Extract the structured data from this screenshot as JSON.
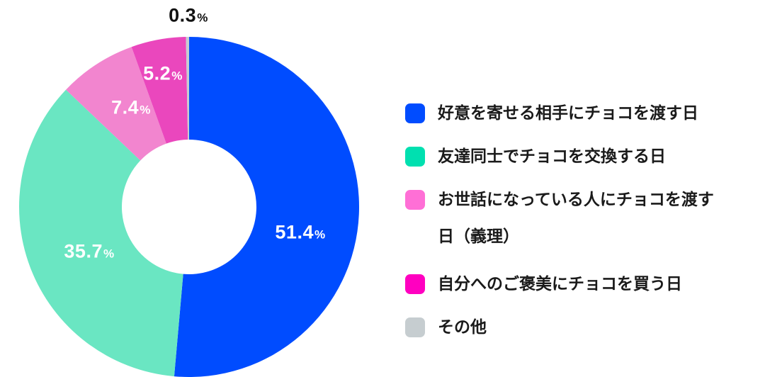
{
  "chart_data": {
    "type": "pie",
    "subtype": "donut",
    "title": "",
    "start_angle_deg": 0,
    "direction": "clockwise",
    "categories": [
      "好意を寄せる相手にチョコを渡す日",
      "友達同士でチョコを交換する日",
      "お世話になっている人にチョコを渡す日（義理）",
      "自分へのご褒美にチョコを買う日",
      "その他"
    ],
    "values": [
      51.4,
      35.7,
      7.4,
      5.2,
      0.3
    ],
    "colors": [
      "#004cff",
      "#6ae6c2",
      "#f285cf",
      "#ea47bd",
      "#c6cdd0"
    ],
    "unit": "%",
    "legend_position": "right"
  },
  "slices": [
    {
      "value": "51.4",
      "unit": "%",
      "color": "#004cff"
    },
    {
      "value": "35.7",
      "unit": "%",
      "color": "#6ae6c2"
    },
    {
      "value": "7.4",
      "unit": "%",
      "color": "#f285cf"
    },
    {
      "value": "5.2",
      "unit": "%",
      "color": "#ea47bd"
    },
    {
      "value": "0.3",
      "unit": "%",
      "color": "#c6cdd0"
    }
  ],
  "legend": {
    "items": [
      {
        "label": "好意を寄せる相手にチョコを渡す日",
        "color": "#004cff"
      },
      {
        "label": "友達同士でチョコを交換する日",
        "color": "#00e0b0"
      },
      {
        "label": "お世話になっている人にチョコを渡す日（義理）",
        "color": "#ff6fd6"
      },
      {
        "label": "自分へのご褒美にチョコを買う日",
        "color": "#ff00c0"
      },
      {
        "label": "その他",
        "color": "#c6cdd0"
      }
    ]
  }
}
